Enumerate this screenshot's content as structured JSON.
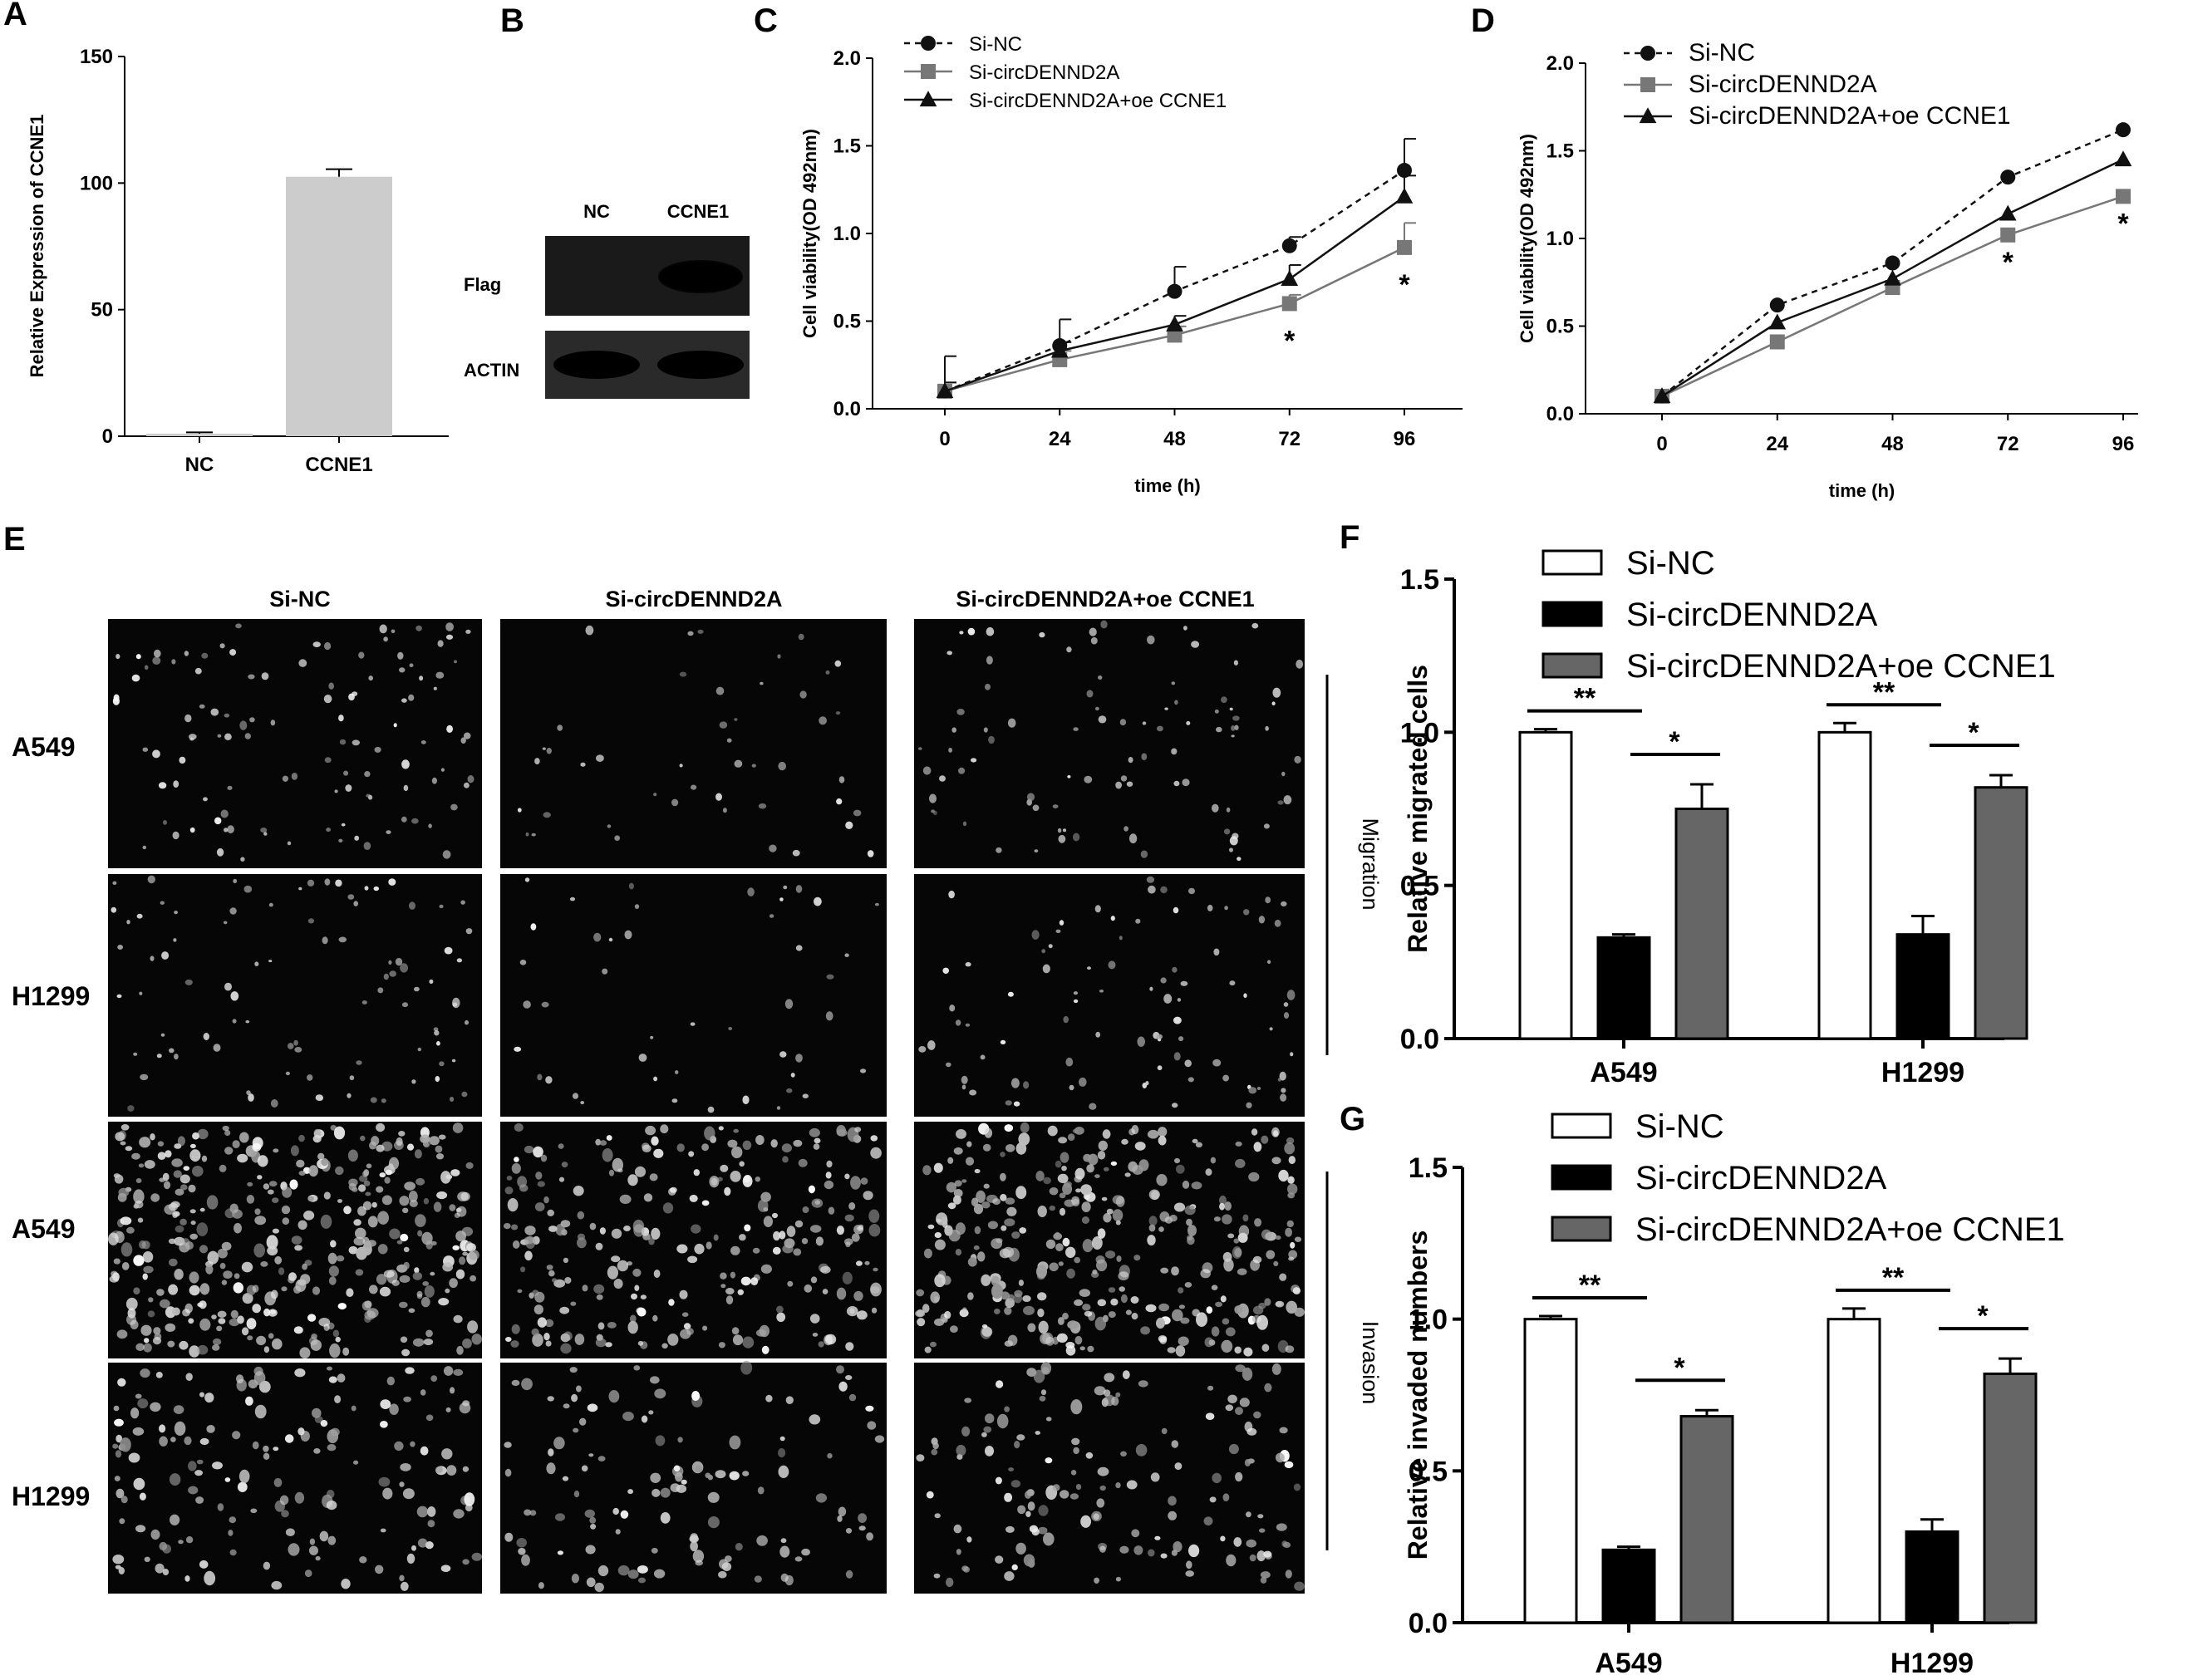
{
  "panels": {
    "A": "A",
    "B": "B",
    "C": "C",
    "D": "D",
    "E": "E",
    "F": "F",
    "G": "G"
  },
  "chart_data": [
    {
      "id": "A",
      "type": "bar",
      "ylabel": "Relative Expression of CCNE1",
      "categories": [
        "NC",
        "CCNE1"
      ],
      "values": [
        1,
        102.5
      ],
      "errors": [
        0.5,
        3
      ],
      "ylim": [
        0,
        150
      ],
      "yticks": [
        "0",
        "50",
        "100",
        "150"
      ],
      "colors": [
        "#cccccc",
        "#cccccc"
      ]
    },
    {
      "id": "C",
      "type": "line",
      "xlabel": "time (h)",
      "ylabel": "Cell viability(OD 492nm)",
      "x": [
        0,
        24,
        48,
        72,
        96
      ],
      "xticks": [
        "0",
        "24",
        "48",
        "72",
        "96"
      ],
      "ylim": [
        0,
        2.0
      ],
      "yticks": [
        "0.0",
        "0.5",
        "1.0",
        "1.5",
        "2.0"
      ],
      "legend_position": "top-left",
      "series": [
        {
          "name": "Si-NC",
          "values": [
            0.1,
            0.36,
            0.67,
            0.93,
            1.36
          ],
          "errors": [
            0.2,
            0.15,
            0.14,
            0.05,
            0.18
          ],
          "marker": "circle",
          "color": "#111111",
          "dashed": true
        },
        {
          "name": "Si-circDENND2A",
          "values": [
            0.1,
            0.28,
            0.42,
            0.6,
            0.92
          ],
          "errors": [
            0.05,
            0.05,
            0.05,
            0.05,
            0.14
          ],
          "marker": "square",
          "color": "#777777",
          "dashed": false
        },
        {
          "name": "Si-circDENND2A+oe CCNE1",
          "values": [
            0.1,
            0.33,
            0.48,
            0.74,
            1.21
          ],
          "errors": [
            0.05,
            0.05,
            0.05,
            0.08,
            0.12
          ],
          "marker": "triangle",
          "color": "#111111",
          "dashed": false
        }
      ],
      "annotations": [
        {
          "x": 72,
          "text": "*"
        },
        {
          "x": 96,
          "text": "*"
        }
      ]
    },
    {
      "id": "D",
      "type": "line",
      "xlabel": "time (h)",
      "ylabel": "Cell viability(OD 492nm)",
      "x": [
        0,
        24,
        48,
        72,
        96
      ],
      "xticks": [
        "0",
        "24",
        "48",
        "72",
        "96"
      ],
      "ylim": [
        0,
        2.0
      ],
      "yticks": [
        "0.0",
        "0.5",
        "1.0",
        "1.5",
        "2.0"
      ],
      "legend_position": "top-left",
      "series": [
        {
          "name": "Si-NC",
          "values": [
            0.1,
            0.62,
            0.86,
            1.35,
            1.62
          ],
          "errors": [
            0,
            0,
            0,
            0,
            0
          ],
          "marker": "circle",
          "color": "#111111",
          "dashed": true
        },
        {
          "name": "Si-circDENND2A",
          "values": [
            0.1,
            0.41,
            0.72,
            1.02,
            1.24
          ],
          "errors": [
            0,
            0,
            0,
            0,
            0
          ],
          "marker": "square",
          "color": "#777777",
          "dashed": false
        },
        {
          "name": "Si-circDENND2A+oe CCNE1",
          "values": [
            0.1,
            0.52,
            0.77,
            1.14,
            1.45
          ],
          "errors": [
            0,
            0,
            0,
            0,
            0
          ],
          "marker": "triangle",
          "color": "#111111",
          "dashed": false
        }
      ],
      "annotations": [
        {
          "x": 72,
          "text": "*"
        },
        {
          "x": 96,
          "text": "*"
        }
      ]
    },
    {
      "id": "F",
      "type": "bar",
      "ylabel": "Relative migrated cells",
      "categories": [
        "A549",
        "H1299"
      ],
      "ylim": [
        0,
        1.5
      ],
      "yticks": [
        "0.0",
        "0.5",
        "1.0",
        "1.5"
      ],
      "legend_position": "top",
      "series": [
        {
          "name": "Si-NC",
          "values": [
            1.0,
            1.0
          ],
          "errors": [
            0.01,
            0.03
          ],
          "color": "#ffffff"
        },
        {
          "name": "Si-circDENND2A",
          "values": [
            0.33,
            0.34
          ],
          "errors": [
            0.01,
            0.06
          ],
          "color": "#000000"
        },
        {
          "name": "Si-circDENND2A+oe CCNE1",
          "values": [
            0.75,
            0.82
          ],
          "errors": [
            0.08,
            0.04
          ],
          "color": "#666666"
        }
      ],
      "annotations": [
        "**",
        "*",
        "**",
        "*"
      ]
    },
    {
      "id": "G",
      "type": "bar",
      "ylabel": "Relative invaded numbers",
      "categories": [
        "A549",
        "H1299"
      ],
      "ylim": [
        0,
        1.5
      ],
      "yticks": [
        "0.0",
        "0.5",
        "1.0",
        "1.5"
      ],
      "legend_position": "top",
      "series": [
        {
          "name": "Si-NC",
          "values": [
            1.0,
            1.0
          ],
          "errors": [
            0.01,
            0.035
          ],
          "color": "#ffffff"
        },
        {
          "name": "Si-circDENND2A",
          "values": [
            0.24,
            0.3
          ],
          "errors": [
            0.01,
            0.04
          ],
          "color": "#000000"
        },
        {
          "name": "Si-circDENND2A+oe CCNE1",
          "values": [
            0.68,
            0.82
          ],
          "errors": [
            0.02,
            0.05
          ],
          "color": "#666666"
        }
      ],
      "annotations": [
        "**",
        "*",
        "**",
        "*"
      ]
    }
  ],
  "blot": {
    "columns": [
      "NC",
      "CCNE1"
    ],
    "rows": [
      "Flag",
      "ACTIN"
    ]
  },
  "micrographs": {
    "columns": [
      "Si-NC",
      "Si-circDENND2A",
      "Si-circDENND2A+oe CCNE1"
    ],
    "rows": [
      "A549",
      "H1299",
      "A549",
      "H1299"
    ],
    "side_labels": [
      "Migration",
      "Invasion"
    ]
  }
}
